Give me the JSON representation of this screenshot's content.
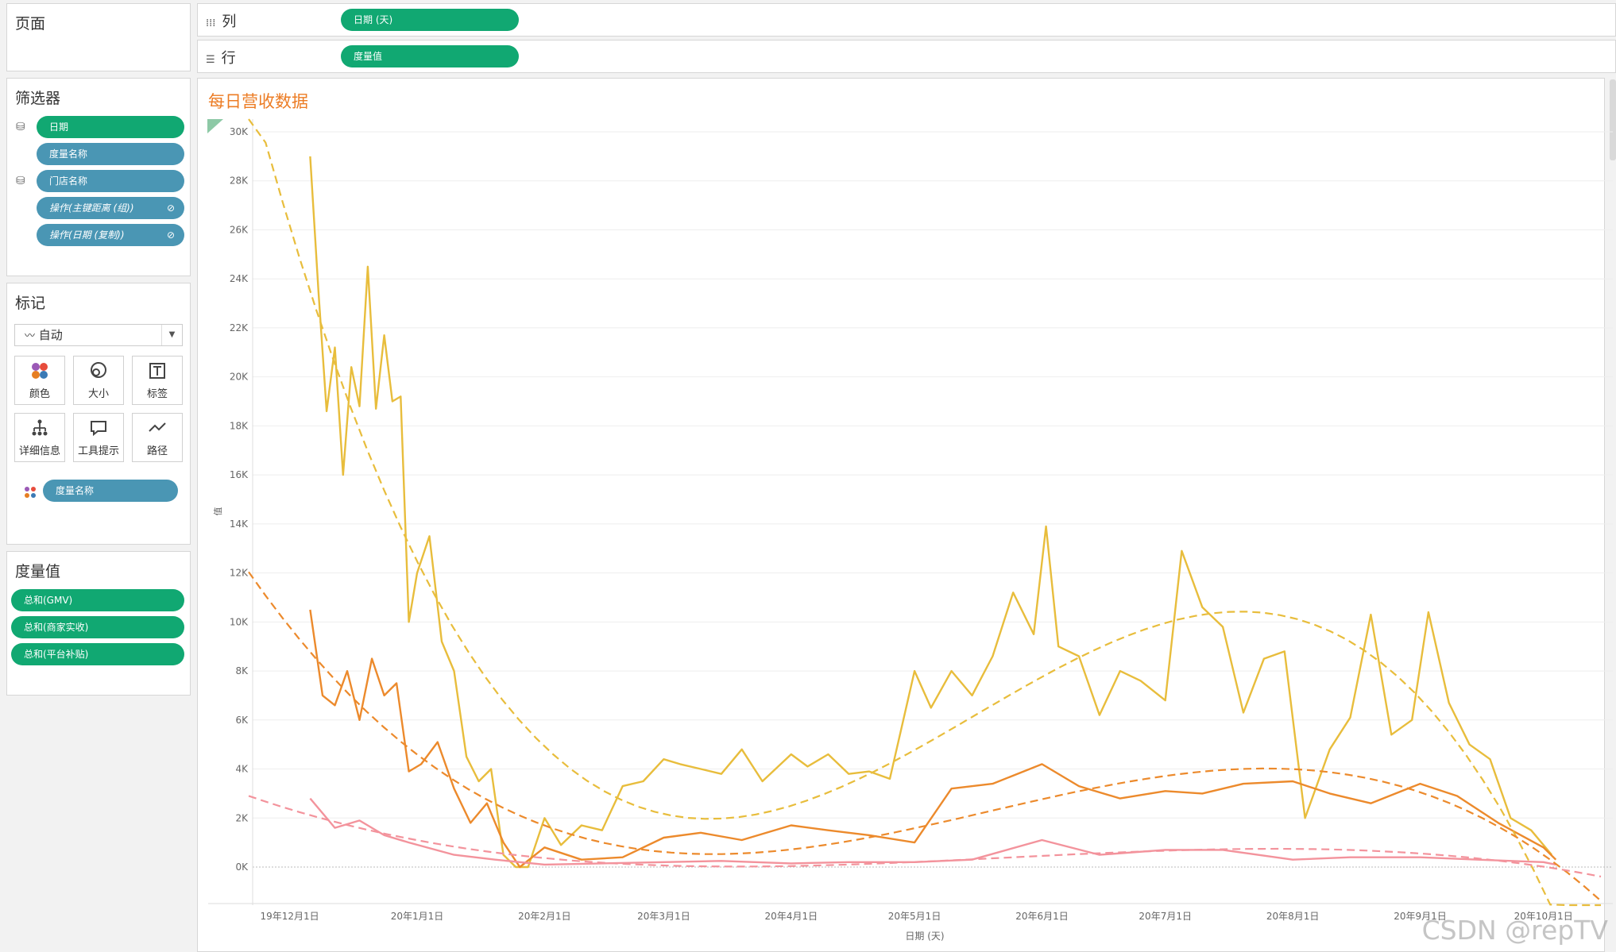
{
  "pages_panel": {
    "title": "页面"
  },
  "columns_shelf": {
    "label": "列",
    "pill": "日期 (天)"
  },
  "rows_shelf": {
    "label": "行",
    "pill": "度量值"
  },
  "filters_panel": {
    "title": "筛选器",
    "items": [
      {
        "label": "日期"
      },
      {
        "label": "度量名称"
      },
      {
        "label": "门店名称"
      },
      {
        "label": "操作(主键距离 (组))"
      },
      {
        "label": "操作(日期 (复制))"
      }
    ]
  },
  "marks_panel": {
    "title": "标记",
    "mark_type": "自动",
    "buttons": [
      {
        "label": "颜色",
        "icon": "color-icon"
      },
      {
        "label": "大小",
        "icon": "size-icon"
      },
      {
        "label": "标签",
        "icon": "label-icon"
      },
      {
        "label": "详细信息",
        "icon": "detail-icon"
      },
      {
        "label": "工具提示",
        "icon": "tooltip-icon"
      },
      {
        "label": "路径",
        "icon": "path-icon"
      }
    ],
    "color_field": "度量名称"
  },
  "measure_values_panel": {
    "title": "度量值",
    "items": [
      {
        "label": "总和(GMV)"
      },
      {
        "label": "总和(商家实收)"
      },
      {
        "label": "总和(平台补贴)"
      }
    ]
  },
  "watermark": "CSDN @repTV",
  "colors": {
    "gmv": "#e8bd3c",
    "merchant": "#ec8a2c",
    "subsidy": "#f3939c",
    "pill_green": "#11a872",
    "pill_blue": "#4a96b4",
    "title": "#ec7c24"
  },
  "chart_data": {
    "type": "line",
    "title": "每日营收数据",
    "xlabel": "日期 (天)",
    "ylabel": "值",
    "ylim": [
      0,
      30000
    ],
    "y_ticks": [
      0,
      2000,
      4000,
      6000,
      8000,
      10000,
      12000,
      14000,
      16000,
      18000,
      20000,
      22000,
      24000,
      26000,
      28000,
      30000
    ],
    "y_tick_labels": [
      "0K",
      "2K",
      "4K",
      "6K",
      "8K",
      "10K",
      "12K",
      "14K",
      "16K",
      "18K",
      "20K",
      "22K",
      "24K",
      "26K",
      "28K",
      "30K"
    ],
    "x_range": [
      "2019-11-22",
      "2020-10-14"
    ],
    "x_ticks": [
      "2019-12-01",
      "2020-01-01",
      "2020-02-01",
      "2020-03-01",
      "2020-04-01",
      "2020-05-01",
      "2020-06-01",
      "2020-07-01",
      "2020-08-01",
      "2020-09-01",
      "2020-10-01"
    ],
    "x_tick_labels": [
      "19年12月1日",
      "20年1月1日",
      "20年2月1日",
      "20年3月1日",
      "20年4月1日",
      "20年5月1日",
      "20年6月1日",
      "20年7月1日",
      "20年8月1日",
      "20年9月1日",
      "20年10月1日"
    ],
    "grid": true,
    "legend": "none",
    "trend_lines": "dashed polynomial trend line per series",
    "series": [
      {
        "color": "#e8bd3c",
        "x": [
          "2019-12-06",
          "2019-12-08",
          "2019-12-10",
          "2019-12-12",
          "2019-12-14",
          "2019-12-16",
          "2019-12-18",
          "2019-12-20",
          "2019-12-22",
          "2019-12-24",
          "2019-12-26",
          "2019-12-28",
          "2019-12-30",
          "2020-01-01",
          "2020-01-04",
          "2020-01-07",
          "2020-01-10",
          "2020-01-13",
          "2020-01-16",
          "2020-01-19",
          "2020-01-22",
          "2020-01-25",
          "2020-01-28",
          "2020-02-01",
          "2020-02-05",
          "2020-02-10",
          "2020-02-15",
          "2020-02-20",
          "2020-02-25",
          "2020-03-01",
          "2020-03-05",
          "2020-03-10",
          "2020-03-15",
          "2020-03-20",
          "2020-03-25",
          "2020-04-01",
          "2020-04-05",
          "2020-04-10",
          "2020-04-15",
          "2020-04-20",
          "2020-04-25",
          "2020-05-01",
          "2020-05-05",
          "2020-05-10",
          "2020-05-15",
          "2020-05-20",
          "2020-05-25",
          "2020-05-30",
          "2020-06-02",
          "2020-06-05",
          "2020-06-10",
          "2020-06-15",
          "2020-06-20",
          "2020-06-25",
          "2020-07-01",
          "2020-07-05",
          "2020-07-10",
          "2020-07-15",
          "2020-07-20",
          "2020-07-25",
          "2020-07-30",
          "2020-08-04",
          "2020-08-10",
          "2020-08-15",
          "2020-08-20",
          "2020-08-25",
          "2020-08-30",
          "2020-09-03",
          "2020-09-08",
          "2020-09-13",
          "2020-09-18",
          "2020-09-23",
          "2020-09-28",
          "2020-10-03"
        ],
        "values": [
          29000,
          23500,
          18600,
          21200,
          16000,
          20400,
          18800,
          24500,
          18700,
          21700,
          19000,
          19200,
          10000,
          12000,
          13500,
          9200,
          8000,
          4500,
          3500,
          4000,
          500,
          0,
          0,
          2000,
          900,
          1700,
          1500,
          3300,
          3500,
          4400,
          4200,
          4000,
          3800,
          4800,
          3500,
          4600,
          4100,
          4600,
          3800,
          3900,
          3600,
          8000,
          6500,
          8000,
          7000,
          8600,
          11200,
          9500,
          13900,
          9000,
          8600,
          6200,
          8000,
          7600,
          6800,
          12900,
          10600,
          9800,
          6300,
          8500,
          8800,
          2000,
          4800,
          6100,
          10300,
          5400,
          6000,
          10400,
          6700,
          5000,
          4400,
          2000,
          1500,
          500
        ]
      },
      {
        "color": "#ec8a2c",
        "x": [
          "2019-12-06",
          "2019-12-09",
          "2019-12-12",
          "2019-12-15",
          "2019-12-18",
          "2019-12-21",
          "2019-12-24",
          "2019-12-27",
          "2019-12-30",
          "2020-01-02",
          "2020-01-06",
          "2020-01-10",
          "2020-01-14",
          "2020-01-18",
          "2020-01-22",
          "2020-01-26",
          "2020-02-01",
          "2020-02-10",
          "2020-02-20",
          "2020-03-01",
          "2020-03-10",
          "2020-03-20",
          "2020-04-01",
          "2020-04-10",
          "2020-04-20",
          "2020-05-01",
          "2020-05-10",
          "2020-05-20",
          "2020-06-01",
          "2020-06-10",
          "2020-06-20",
          "2020-07-01",
          "2020-07-10",
          "2020-07-20",
          "2020-08-01",
          "2020-08-10",
          "2020-08-20",
          "2020-09-01",
          "2020-09-10",
          "2020-09-20",
          "2020-10-01",
          "2020-10-04"
        ],
        "values": [
          10500,
          7000,
          6600,
          8000,
          6000,
          8500,
          7000,
          7500,
          3900,
          4200,
          5100,
          3200,
          1800,
          2600,
          1000,
          0,
          800,
          300,
          400,
          1200,
          1400,
          1100,
          1700,
          1500,
          1300,
          1000,
          3200,
          3400,
          4200,
          3300,
          2800,
          3100,
          3000,
          3400,
          3500,
          3000,
          2600,
          3400,
          2900,
          1800,
          800,
          300
        ]
      },
      {
        "color": "#f3939c",
        "x": [
          "2019-12-06",
          "2019-12-12",
          "2019-12-18",
          "2019-12-24",
          "2019-12-30",
          "2020-01-10",
          "2020-01-20",
          "2020-02-01",
          "2020-02-15",
          "2020-03-01",
          "2020-03-15",
          "2020-04-01",
          "2020-04-15",
          "2020-05-01",
          "2020-05-15",
          "2020-06-01",
          "2020-06-15",
          "2020-07-01",
          "2020-07-15",
          "2020-08-01",
          "2020-08-15",
          "2020-09-01",
          "2020-09-15",
          "2020-10-01",
          "2020-10-04"
        ],
        "values": [
          2800,
          1600,
          1900,
          1300,
          1000,
          500,
          300,
          100,
          150,
          200,
          250,
          150,
          200,
          200,
          300,
          1100,
          500,
          700,
          700,
          300,
          400,
          400,
          300,
          200,
          100
        ]
      }
    ]
  }
}
